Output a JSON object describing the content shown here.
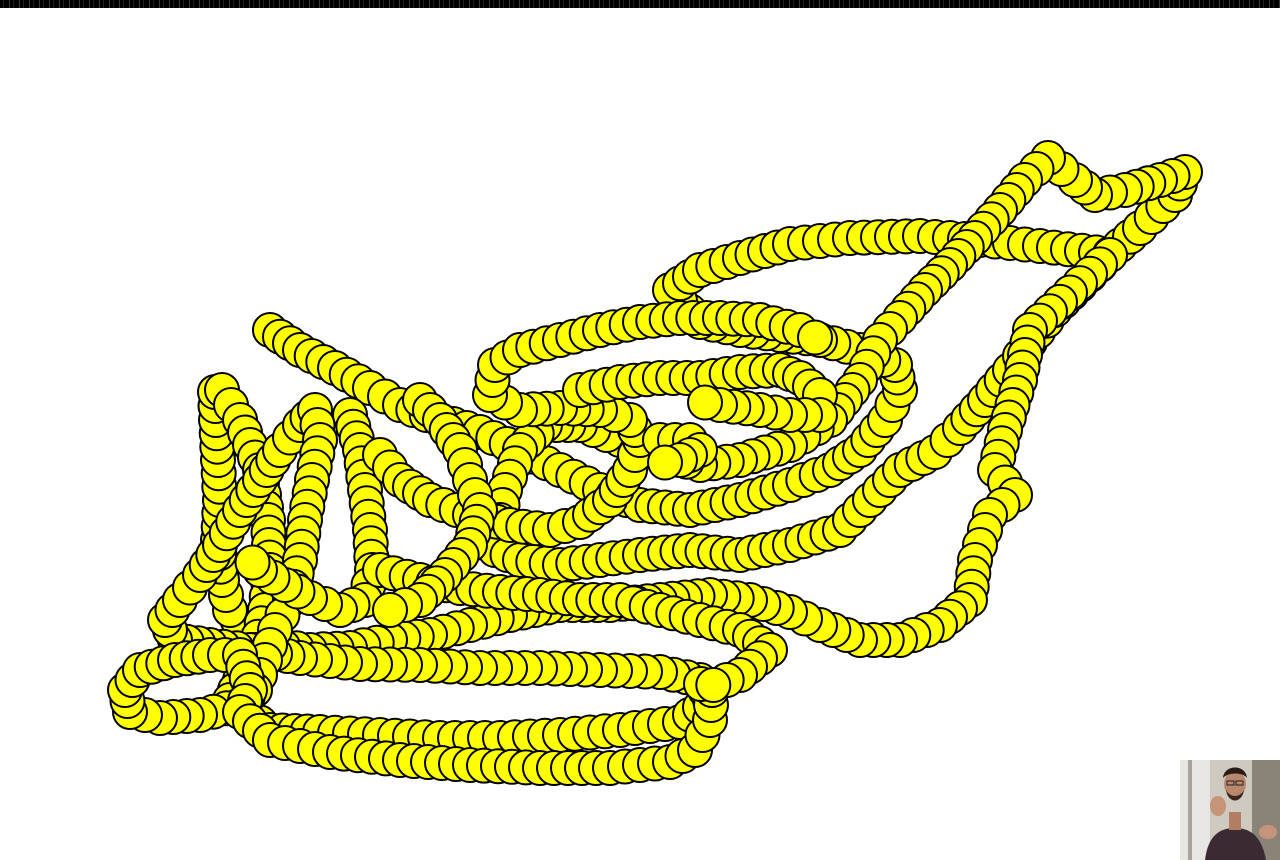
{
  "scene": {
    "ball_fill": "#ffff00",
    "ball_stroke": "#000000",
    "background": "#ffffff"
  },
  "webcam_overlay": {
    "icon": "presenter-webcam-feed"
  }
}
